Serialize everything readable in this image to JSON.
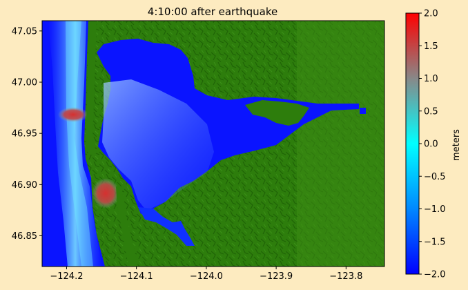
{
  "chart_data": {
    "type": "heatmap",
    "title": "4:10:00 after earthquake",
    "xlabel": "",
    "ylabel": "",
    "x_ticks": [
      "−124.2",
      "−124.1",
      "−124.0",
      "−123.9",
      "−123.8"
    ],
    "x_tick_values": [
      -124.2,
      -124.1,
      -124.0,
      -123.9,
      -123.8
    ],
    "y_ticks": [
      "46.85",
      "46.90",
      "46.95",
      "47.00",
      "47.05"
    ],
    "y_tick_values": [
      46.85,
      46.9,
      46.95,
      47.0,
      47.05
    ],
    "xlim": [
      -124.235,
      -123.745
    ],
    "ylim": [
      46.82,
      47.06
    ],
    "colorbar": {
      "label": "meters",
      "ticks": [
        "−2.0",
        "−1.5",
        "−1.0",
        "−0.5",
        "0.0",
        "0.5",
        "1.0",
        "1.5",
        "2.0"
      ],
      "tick_values": [
        -2.0,
        -1.5,
        -1.0,
        -0.5,
        0.0,
        0.5,
        1.0,
        1.5,
        2.0
      ],
      "vmin": -2.0,
      "vmax": 2.0,
      "colors": [
        "#0000ff",
        "#0088ff",
        "#00ffff",
        "#888888",
        "#ff0000"
      ]
    },
    "land_color": "#2a7a0a",
    "water_color": "#0a14ff",
    "grid": false
  },
  "colors": {
    "figure_background": "#fdebc0"
  }
}
